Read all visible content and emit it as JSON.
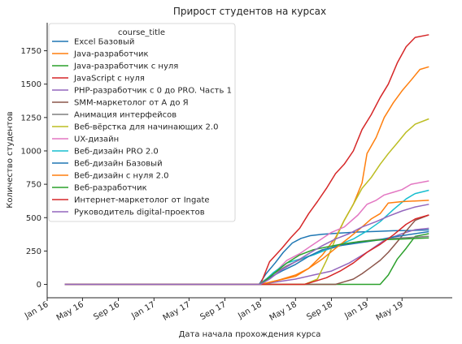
{
  "chart_data": {
    "type": "line",
    "title": "Прирост студентов на курсах",
    "xlabel": "Дата начала прохождения курса",
    "ylabel": "Количество студентов",
    "legend_title": "course_title",
    "legend_position": "upper left",
    "grid": false,
    "xlim": [
      "2016-01-01",
      "2019-10-20"
    ],
    "ylim": [
      -100,
      1960
    ],
    "x_ticks": [
      {
        "date": "2016-01-01",
        "label": "Jan 16"
      },
      {
        "date": "2016-05-01",
        "label": "May 16"
      },
      {
        "date": "2016-09-01",
        "label": "Sep 16"
      },
      {
        "date": "2017-01-01",
        "label": "Jan 17"
      },
      {
        "date": "2017-05-01",
        "label": "May 17"
      },
      {
        "date": "2017-09-01",
        "label": "Sep 17"
      },
      {
        "date": "2018-01-01",
        "label": "Jan 18"
      },
      {
        "date": "2018-05-01",
        "label": "May 18"
      },
      {
        "date": "2018-09-01",
        "label": "Sep 18"
      },
      {
        "date": "2019-01-01",
        "label": "Jan 19"
      },
      {
        "date": "2019-05-01",
        "label": "May 19"
      }
    ],
    "y_ticks": [
      0,
      250,
      500,
      750,
      1000,
      1250,
      1500,
      1750
    ],
    "series": [
      {
        "name": "Excel Базовый",
        "color": "#1f77b4",
        "points": [
          [
            "2016-03-01",
            0
          ],
          [
            "2017-12-28",
            2
          ],
          [
            "2018-01-20",
            80
          ],
          [
            "2018-02-20",
            160
          ],
          [
            "2018-03-20",
            240
          ],
          [
            "2018-04-20",
            310
          ],
          [
            "2018-05-20",
            345
          ],
          [
            "2018-06-20",
            365
          ],
          [
            "2018-08-01",
            375
          ],
          [
            "2018-10-01",
            385
          ],
          [
            "2018-12-01",
            392
          ],
          [
            "2019-02-01",
            397
          ],
          [
            "2019-04-01",
            402
          ],
          [
            "2019-06-01",
            404
          ],
          [
            "2019-08-01",
            408
          ]
        ]
      },
      {
        "name": "Java-разработчик",
        "color": "#ff7f0e",
        "points": [
          [
            "2016-03-01",
            0
          ],
          [
            "2018-01-01",
            0
          ],
          [
            "2018-03-01",
            30
          ],
          [
            "2018-05-01",
            60
          ],
          [
            "2018-06-15",
            120
          ],
          [
            "2018-08-01",
            220
          ],
          [
            "2018-09-15",
            350
          ],
          [
            "2018-10-15",
            480
          ],
          [
            "2018-11-15",
            600
          ],
          [
            "2018-12-15",
            760
          ],
          [
            "2019-01-01",
            980
          ],
          [
            "2019-02-01",
            1100
          ],
          [
            "2019-03-01",
            1250
          ],
          [
            "2019-04-01",
            1360
          ],
          [
            "2019-05-01",
            1450
          ],
          [
            "2019-06-01",
            1530
          ],
          [
            "2019-07-01",
            1610
          ],
          [
            "2019-08-01",
            1630
          ]
        ]
      },
      {
        "name": "Java-разработчик с нуля",
        "color": "#2ca02c",
        "points": [
          [
            "2016-03-01",
            0
          ],
          [
            "2019-02-15",
            0
          ],
          [
            "2019-03-15",
            70
          ],
          [
            "2019-04-15",
            190
          ],
          [
            "2019-05-15",
            270
          ],
          [
            "2019-06-15",
            360
          ],
          [
            "2019-08-01",
            380
          ]
        ]
      },
      {
        "name": "JavaScript с нуля",
        "color": "#d62728",
        "points": [
          [
            "2016-03-01",
            0
          ],
          [
            "2018-01-01",
            0
          ],
          [
            "2018-02-01",
            170
          ],
          [
            "2018-03-15",
            270
          ],
          [
            "2018-04-15",
            350
          ],
          [
            "2018-05-15",
            420
          ],
          [
            "2018-06-15",
            530
          ],
          [
            "2018-07-15",
            620
          ],
          [
            "2018-08-15",
            720
          ],
          [
            "2018-09-15",
            830
          ],
          [
            "2018-10-15",
            900
          ],
          [
            "2018-11-15",
            1000
          ],
          [
            "2018-12-15",
            1160
          ],
          [
            "2019-01-15",
            1270
          ],
          [
            "2019-02-15",
            1400
          ],
          [
            "2019-03-15",
            1500
          ],
          [
            "2019-04-15",
            1660
          ],
          [
            "2019-05-15",
            1780
          ],
          [
            "2019-06-15",
            1850
          ],
          [
            "2019-08-01",
            1870
          ]
        ]
      },
      {
        "name": "PHP-разработчик с 0 до PRO. Часть 1",
        "color": "#9467bd",
        "points": [
          [
            "2016-03-01",
            0
          ],
          [
            "2018-01-01",
            0
          ],
          [
            "2018-03-01",
            20
          ],
          [
            "2018-05-01",
            40
          ],
          [
            "2018-07-01",
            70
          ],
          [
            "2018-09-01",
            100
          ],
          [
            "2018-11-01",
            160
          ],
          [
            "2019-01-01",
            240
          ],
          [
            "2019-03-01",
            330
          ],
          [
            "2019-05-01",
            380
          ],
          [
            "2019-06-15",
            410
          ],
          [
            "2019-08-01",
            420
          ]
        ]
      },
      {
        "name": "SMM-маркетолог от А до Я",
        "color": "#8c564b",
        "points": [
          [
            "2016-03-01",
            0
          ],
          [
            "2018-09-15",
            0
          ],
          [
            "2018-10-15",
            20
          ],
          [
            "2018-11-15",
            40
          ],
          [
            "2018-12-15",
            80
          ],
          [
            "2019-01-15",
            130
          ],
          [
            "2019-02-15",
            180
          ],
          [
            "2019-03-15",
            240
          ],
          [
            "2019-04-15",
            320
          ],
          [
            "2019-05-15",
            400
          ],
          [
            "2019-06-15",
            480
          ],
          [
            "2019-08-01",
            520
          ]
        ]
      },
      {
        "name": "Анимация интерфейсов",
        "color": "#7f7f7f",
        "points": [
          [
            "2016-03-01",
            0
          ],
          [
            "2017-12-28",
            2
          ],
          [
            "2018-02-01",
            60
          ],
          [
            "2018-04-01",
            140
          ],
          [
            "2018-06-01",
            200
          ],
          [
            "2018-08-01",
            250
          ],
          [
            "2018-10-01",
            290
          ],
          [
            "2018-12-01",
            320
          ],
          [
            "2019-02-01",
            335
          ],
          [
            "2019-04-01",
            345
          ],
          [
            "2019-06-01",
            352
          ],
          [
            "2019-08-01",
            360
          ]
        ]
      },
      {
        "name": "Веб-вёрстка для начинающих 2.0",
        "color": "#bcbd22",
        "points": [
          [
            "2016-03-01",
            0
          ],
          [
            "2018-06-01",
            0
          ],
          [
            "2018-07-15",
            40
          ],
          [
            "2018-08-15",
            180
          ],
          [
            "2018-09-15",
            340
          ],
          [
            "2018-10-15",
            480
          ],
          [
            "2018-11-15",
            600
          ],
          [
            "2018-12-15",
            720
          ],
          [
            "2019-01-15",
            800
          ],
          [
            "2019-02-15",
            900
          ],
          [
            "2019-03-15",
            980
          ],
          [
            "2019-04-15",
            1060
          ],
          [
            "2019-05-15",
            1140
          ],
          [
            "2019-06-15",
            1200
          ],
          [
            "2019-08-01",
            1240
          ]
        ]
      },
      {
        "name": "UX-дизайн",
        "color": "#e377c2",
        "points": [
          [
            "2016-03-01",
            0
          ],
          [
            "2018-01-01",
            0
          ],
          [
            "2018-02-15",
            80
          ],
          [
            "2018-04-01",
            180
          ],
          [
            "2018-05-15",
            230
          ],
          [
            "2018-07-01",
            300
          ],
          [
            "2018-09-01",
            390
          ],
          [
            "2018-10-15",
            430
          ],
          [
            "2018-12-01",
            520
          ],
          [
            "2019-01-01",
            600
          ],
          [
            "2019-02-01",
            630
          ],
          [
            "2019-03-01",
            670
          ],
          [
            "2019-04-01",
            690
          ],
          [
            "2019-05-01",
            710
          ],
          [
            "2019-06-01",
            750
          ],
          [
            "2019-08-01",
            775
          ]
        ]
      },
      {
        "name": "Веб-дизайн PRO 2.0",
        "color": "#17becf",
        "points": [
          [
            "2016-03-01",
            0
          ],
          [
            "2018-01-01",
            0
          ],
          [
            "2018-02-15",
            90
          ],
          [
            "2018-04-01",
            160
          ],
          [
            "2018-05-15",
            190
          ],
          [
            "2018-07-01",
            220
          ],
          [
            "2018-08-15",
            260
          ],
          [
            "2018-10-01",
            300
          ],
          [
            "2018-11-15",
            340
          ],
          [
            "2019-01-01",
            400
          ],
          [
            "2019-02-15",
            470
          ],
          [
            "2019-04-01",
            560
          ],
          [
            "2019-05-15",
            640
          ],
          [
            "2019-06-15",
            680
          ],
          [
            "2019-08-01",
            705
          ]
        ]
      },
      {
        "name": "Веб-дизайн Базовый",
        "color": "#1f77b4",
        "points": [
          [
            "2016-03-01",
            0
          ],
          [
            "2018-01-01",
            0
          ],
          [
            "2018-02-01",
            50
          ],
          [
            "2018-03-15",
            100
          ],
          [
            "2018-05-01",
            150
          ],
          [
            "2018-06-15",
            210
          ],
          [
            "2018-08-01",
            260
          ],
          [
            "2018-10-01",
            290
          ],
          [
            "2018-12-01",
            310
          ],
          [
            "2019-02-01",
            330
          ],
          [
            "2019-04-01",
            355
          ],
          [
            "2019-06-01",
            375
          ],
          [
            "2019-08-01",
            395
          ]
        ]
      },
      {
        "name": "Веб-дизайн с нуля 2.0",
        "color": "#ff7f0e",
        "points": [
          [
            "2016-03-01",
            0
          ],
          [
            "2018-01-01",
            0
          ],
          [
            "2018-03-01",
            30
          ],
          [
            "2018-05-01",
            70
          ],
          [
            "2018-06-15",
            120
          ],
          [
            "2018-08-01",
            190
          ],
          [
            "2018-09-15",
            270
          ],
          [
            "2018-11-01",
            350
          ],
          [
            "2018-12-15",
            430
          ],
          [
            "2019-01-15",
            490
          ],
          [
            "2019-02-15",
            530
          ],
          [
            "2019-03-15",
            610
          ],
          [
            "2019-05-01",
            620
          ],
          [
            "2019-06-15",
            625
          ],
          [
            "2019-08-01",
            630
          ]
        ]
      },
      {
        "name": "Веб-разработчик",
        "color": "#2ca02c",
        "points": [
          [
            "2016-03-01",
            0
          ],
          [
            "2018-01-01",
            0
          ],
          [
            "2018-02-15",
            80
          ],
          [
            "2018-04-01",
            160
          ],
          [
            "2018-05-15",
            220
          ],
          [
            "2018-07-01",
            260
          ],
          [
            "2018-08-15",
            280
          ],
          [
            "2018-10-01",
            300
          ],
          [
            "2018-11-15",
            315
          ],
          [
            "2019-01-01",
            325
          ],
          [
            "2019-03-01",
            335
          ],
          [
            "2019-05-01",
            340
          ],
          [
            "2019-08-01",
            348
          ]
        ]
      },
      {
        "name": "Интернет-маркетолог от Ingate",
        "color": "#d62728",
        "points": [
          [
            "2016-03-01",
            0
          ],
          [
            "2018-06-01",
            0
          ],
          [
            "2018-07-01",
            20
          ],
          [
            "2018-08-15",
            50
          ],
          [
            "2018-10-01",
            100
          ],
          [
            "2018-11-15",
            160
          ],
          [
            "2019-01-01",
            240
          ],
          [
            "2019-02-15",
            300
          ],
          [
            "2019-04-01",
            370
          ],
          [
            "2019-05-15",
            450
          ],
          [
            "2019-06-15",
            490
          ],
          [
            "2019-08-01",
            520
          ]
        ]
      },
      {
        "name": "Руководитель digital-проектов",
        "color": "#9467bd",
        "points": [
          [
            "2016-03-01",
            0
          ],
          [
            "2018-01-01",
            0
          ],
          [
            "2018-02-01",
            40
          ],
          [
            "2018-03-15",
            110
          ],
          [
            "2018-05-01",
            170
          ],
          [
            "2018-06-15",
            230
          ],
          [
            "2018-08-01",
            290
          ],
          [
            "2018-09-15",
            340
          ],
          [
            "2018-11-01",
            380
          ],
          [
            "2018-12-15",
            430
          ],
          [
            "2019-02-01",
            470
          ],
          [
            "2019-03-15",
            510
          ],
          [
            "2019-05-01",
            550
          ],
          [
            "2019-06-15",
            580
          ],
          [
            "2019-08-01",
            600
          ]
        ]
      }
    ]
  }
}
